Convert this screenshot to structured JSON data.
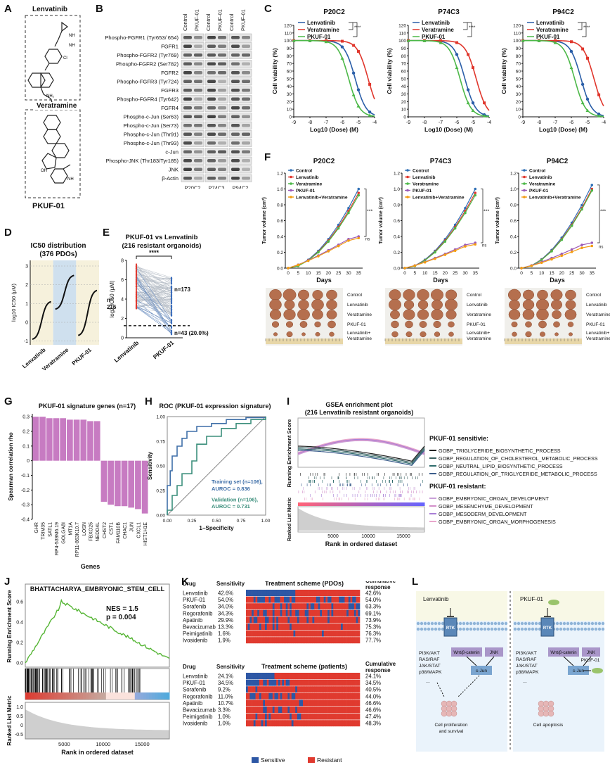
{
  "panels": {
    "A": {
      "label": "A",
      "drug1": "Lenvatinib",
      "drug2": "Veratramine",
      "compound": "PKUF-01"
    },
    "B": {
      "label": "B",
      "columns": [
        "Control",
        "PKUF-01",
        "Control",
        "PKUF-01",
        "Control",
        "PKUF-01"
      ],
      "rows": [
        "Phospho-FGFR1 (Tyr653/ 654)",
        "FGFR1",
        "Phospho-FGFR2 (Tyr769)",
        "Phospho-FGFR2 (Ser782)",
        "FGFR2",
        "Phospho-FGFR3 (Tyr724)",
        "FGFR3",
        "Phospho-FGFR4 (Tyr642)",
        "FGFR4",
        "Phospho-c-Jun (Ser63)",
        "Phospho-c-Jun (Ser73)",
        "Phospho-c-Jun (Thr91)",
        "Phospho-c-Jun (Thr93)",
        "c-Jun",
        "Phospho-JNK (Thr183/Tyr185)",
        "JNK",
        "β-Actin"
      ],
      "groups": [
        "P20C2",
        "P74C3",
        "P94C2"
      ]
    },
    "C": {
      "label": "C",
      "titles": [
        "P20C2",
        "P74C3",
        "P94C2"
      ],
      "legend": [
        "Lenvatinib",
        "Veratramine",
        "PKUF-01"
      ],
      "ylabel": "Cell viability (%)",
      "xlabel": "Log10 (Dose) (M)",
      "sig": "****",
      "yticks": [
        "0",
        "10",
        "20",
        "30",
        "40",
        "50",
        "60",
        "70",
        "80",
        "90",
        "100",
        "110",
        "120"
      ],
      "xticks": [
        "-9",
        "-8",
        "-7",
        "-6",
        "-5",
        "-4"
      ]
    },
    "D": {
      "label": "D",
      "title": "IC50 distribution",
      "subtitle": "(376 PDOs)",
      "ylabel": "log10 IC50 (μM)",
      "yticks": [
        "-1",
        "0",
        "1",
        "2",
        "3"
      ],
      "groups": [
        "Lenvatinib",
        "Veratramine",
        "PKUF-01"
      ]
    },
    "E": {
      "label": "E",
      "title": "PKUF-01 vs Lenvatinib",
      "subtitle": "(216 resistant organoids)",
      "ylabel": "log2 IC50 (μM)",
      "yticks": [
        "0",
        "2",
        "4",
        "6",
        "8"
      ],
      "sig": "****",
      "n1": "n=",
      "n1b": "216",
      "n2": "n=173",
      "n3": "n=43 (20.0%)",
      "groups": [
        "Lenvatinib",
        "PKUF-01"
      ]
    },
    "F": {
      "label": "F",
      "titles": [
        "P20C2",
        "P74C3",
        "P94C2"
      ],
      "legend": [
        "Control",
        "Lenvatinib",
        "Veratramine",
        "PKUF-01",
        "Lenvatinib+Veratramine"
      ],
      "ylabel": "Tumor volume (cm³)",
      "xlabel": "Days",
      "xticks": [
        "0",
        "5",
        "10",
        "15",
        "20",
        "25",
        "30",
        "35"
      ],
      "yticks": [
        "0.0",
        "0.2",
        "0.4",
        "0.6",
        "0.8",
        "1.0",
        "1.2"
      ],
      "sig": "***",
      "ns": "ns",
      "photo_labels": [
        "Control",
        "Lenvatinib",
        "Veratramine",
        "PKUF-01",
        "Lenvatinib+",
        "Veratramine"
      ]
    },
    "G": {
      "label": "G",
      "title": "PKUF-01 signature genes (n=17)",
      "ylabel": "Spearman correlation rho",
      "xlabel": "Genes",
      "yticks": [
        "-0.4",
        "-0.3",
        "-0.2",
        "-0.1",
        "0",
        "0.1",
        "0.2",
        "0.3"
      ],
      "genes": [
        "GHR",
        "TRIM35",
        "SATL1",
        "RP4-539M6.19",
        "GOLGA8I",
        "MT1A",
        "RP11-863K10.7",
        "LOSN",
        "FBXO25",
        "NEDD4L",
        "CHST2",
        "CST1",
        "FAM110B",
        "CHAC1",
        "JUN",
        "CXCL1",
        "HIST1H1E"
      ]
    },
    "H": {
      "label": "H",
      "title": "ROC (PKUF-01 expression signature)",
      "ylabel": "Sensitivity",
      "xlabel": "1−Specificity",
      "xticks": [
        "0.00",
        "0.25",
        "0.50",
        "0.75",
        "1.00"
      ],
      "yticks": [
        "0.00",
        "0.25",
        "0.50",
        "0.75",
        "1.00"
      ],
      "train1": "Training set (n=106),",
      "train2": "AUROC = 0.836",
      "valid1": "Validation (n=106),",
      "valid2": "AUROC = 0.731"
    },
    "I": {
      "label": "I",
      "title": "GSEA enrichment plot",
      "subtitle": "(216 Lenvatinib resistant organoids)",
      "ylabel1": "Running Enrichment Score",
      "ylabel2": "Ranked List Metric",
      "xlabel": "Rank in ordered dataset",
      "xticks": [
        "5000",
        "10000",
        "15000"
      ],
      "sens_title": "PKUF-01 sensitivie:",
      "sens": [
        "GOBP_TRIGLYCERIDE_BIOSYNTHETIC_PROCESS",
        "GOBP_REGULATION_OF_CHOLESTEROL_METABOLIC_PROCESS",
        "GOBP_NEUTRAL_LIPID_BIOSYNTHETIC_PROCESS",
        "GOBP_REGULATION_OF_TRIGLYCERIDE_METABOLIC_PROCESS"
      ],
      "res_title": "PKUF-01 resistant:",
      "res": [
        "GOBP_EMBRYONIC_ORGAN_DEVELOPMENT",
        "GOBP_MESENCHYME_DEVELOPMENT",
        "GOBP_MESODERM_DEVELOPMENT",
        "GOBP_EMBRYONIC_ORGAN_MORPHOGENESIS"
      ]
    },
    "J": {
      "label": "J",
      "title": "BHATTACHARYA_EMBRYONIC_STEM_CELL",
      "nes": "NES = 1.5",
      "p": "p = 0.004",
      "ylabel1": "Running Enrichment Score",
      "ylabel2": "Ranked List Metric",
      "xlabel": "Rank in ordered dataset",
      "xticks": [
        "5000",
        "10000",
        "15000"
      ],
      "yticks": [
        "0.0",
        "0.2",
        "0.4",
        "0.6"
      ],
      "yticks2": [
        "-0.5",
        "0",
        "0.5",
        "1.0"
      ]
    },
    "K": {
      "label": "K",
      "title1": "Treatment scheme (PDOs)",
      "title2": "Treatment scheme (patients)",
      "drug_h": "Drug",
      "sens_h": "Sensitivity",
      "cum_h1": "Cumulative",
      "cum_h2": "response",
      "drugs": [
        "Lenvatinib",
        "PKUF-01",
        "Sorafenib",
        "Regorafenib",
        "Apatinib",
        "Bevacizumab",
        "Peimigatinib",
        "Ivosidenib"
      ],
      "pdo_sens": [
        "42.6%",
        "54.0%",
        "34.0%",
        "34.3%",
        "29.9%",
        "13.3%",
        "1.6%",
        "1.9%"
      ],
      "pdo_cum": [
        "42.6%",
        "54.0%",
        "63.3%",
        "69.1%",
        "73.9%",
        "75.3%",
        "76.3%",
        "77.7%"
      ],
      "pat_sens": [
        "24.1%",
        "34.5%",
        "9.2%",
        "11.0%",
        "10.7%",
        "3.3%",
        "1.0%",
        "1.0%"
      ],
      "pat_cum": [
        "24.1%",
        "34.5%",
        "40.5%",
        "44.0%",
        "46.6%",
        "46.6%",
        "47.4%",
        "48.3%"
      ],
      "legend_s": "Sensitive",
      "legend_r": "Resistant"
    },
    "L": {
      "label": "L",
      "left_drug": "Lenvatinib",
      "right_drug": "PKUF-01",
      "rtk": "RTK",
      "pathways": [
        "PI3K/AKT",
        "RAS/RAF",
        "JAK/STAT",
        "p38/MAPK"
      ],
      "wnt": "Wnt/β-catenin",
      "jnk": "JNK",
      "cjun": "c-Jun",
      "dots": "...",
      "left_out1": "Cell proliferation",
      "left_out2": "and survival",
      "right_out": "Cell apoptosis",
      "pkuf": "PKUF-01"
    }
  },
  "colors": {
    "blue": "#2a5ea8",
    "red": "#e0362c",
    "green": "#4cb848",
    "purple": "#9b59b6",
    "orange": "#f39c12",
    "pink": "#c77bc2",
    "sens_blue": "#2d57a5",
    "res_red": "#e03a2f"
  }
}
